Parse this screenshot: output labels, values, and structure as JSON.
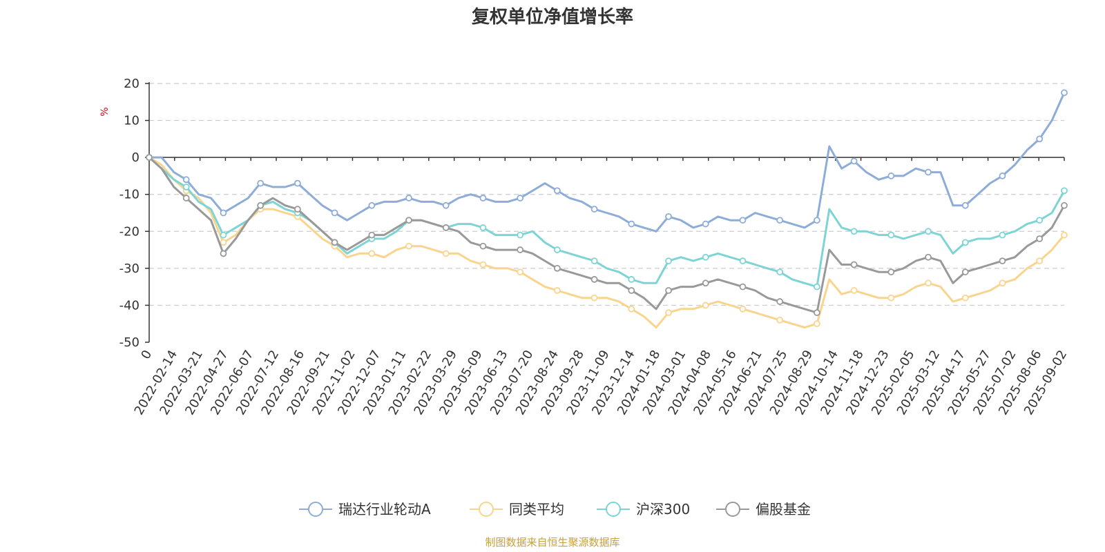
{
  "chart_data": {
    "type": "line",
    "title": "复权单位净值增长率",
    "ylabel": "%",
    "ylim": [
      -50,
      20
    ],
    "yticks": [
      20,
      10,
      0,
      -10,
      -20,
      -30,
      -40,
      -50
    ],
    "grid": true,
    "legend_position": "bottom",
    "xtick_labels": [
      "0",
      "2022-02-14",
      "2022-03-21",
      "2022-04-27",
      "2022-06-07",
      "2022-07-12",
      "2022-08-16",
      "2022-09-21",
      "2022-11-02",
      "2022-12-07",
      "2023-01-11",
      "2023-02-22",
      "2023-03-29",
      "2023-05-09",
      "2023-06-13",
      "2023-07-20",
      "2023-08-24",
      "2023-09-28",
      "2023-11-09",
      "2023-12-14",
      "2024-01-18",
      "2024-03-01",
      "2024-04-08",
      "2024-05-16",
      "2024-06-21",
      "2024-07-25",
      "2024-08-29",
      "2024-10-14",
      "2024-11-18",
      "2024-12-23",
      "2025-02-05",
      "2025-03-12",
      "2025-04-17",
      "2025-05-27",
      "2025-07-02",
      "2025-08-06",
      "2025-09-02"
    ],
    "x": [
      "0",
      "2022-01-20",
      "2022-02-14",
      "2022-03-01",
      "2022-03-21",
      "2022-04-08",
      "2022-04-27",
      "2022-05-16",
      "2022-06-07",
      "2022-06-24",
      "2022-07-12",
      "2022-07-28",
      "2022-08-16",
      "2022-09-01",
      "2022-09-21",
      "2022-10-12",
      "2022-11-02",
      "2022-11-18",
      "2022-12-07",
      "2022-12-23",
      "2023-01-11",
      "2023-02-06",
      "2023-02-22",
      "2023-03-10",
      "2023-03-29",
      "2023-04-18",
      "2023-05-09",
      "2023-05-25",
      "2023-06-13",
      "2023-07-03",
      "2023-07-20",
      "2023-08-07",
      "2023-08-24",
      "2023-09-11",
      "2023-09-28",
      "2023-10-23",
      "2023-11-09",
      "2023-11-27",
      "2023-12-14",
      "2024-01-02",
      "2024-01-18",
      "2024-02-06",
      "2024-03-01",
      "2024-03-19",
      "2024-04-08",
      "2024-04-26",
      "2024-05-16",
      "2024-06-03",
      "2024-06-21",
      "2024-07-09",
      "2024-07-25",
      "2024-08-12",
      "2024-08-29",
      "2024-09-24",
      "2024-09-30",
      "2024-10-14",
      "2024-10-31",
      "2024-11-18",
      "2024-12-05",
      "2024-12-23",
      "2025-01-13",
      "2025-02-05",
      "2025-02-21",
      "2025-03-12",
      "2025-03-31",
      "2025-04-07",
      "2025-04-17",
      "2025-05-08",
      "2025-05-27",
      "2025-06-16",
      "2025-07-02",
      "2025-07-18",
      "2025-08-06",
      "2025-08-20",
      "2025-09-02"
    ],
    "series": [
      {
        "name": "瑞达行业轮动A",
        "color": "#8eacd8",
        "values": [
          0,
          0,
          -4,
          -6,
          -10,
          -11,
          -15,
          -13,
          -11,
          -7,
          -8,
          -8,
          -7,
          -10,
          -13,
          -15,
          -17,
          -15,
          -13,
          -12,
          -12,
          -11,
          -12,
          -12,
          -13,
          -11,
          -10,
          -11,
          -12,
          -12,
          -11,
          -9,
          -7,
          -9,
          -11,
          -12,
          -14,
          -15,
          -16,
          -18,
          -19,
          -20,
          -16,
          -17,
          -19,
          -18,
          -16,
          -17,
          -17,
          -15,
          -16,
          -17,
          -18,
          -19,
          -17,
          3,
          -3,
          -1,
          -4,
          -6,
          -5,
          -5,
          -3,
          -4,
          -4,
          -13,
          -13,
          -10,
          -7,
          -5,
          -2,
          2,
          5,
          10,
          17.5
        ]
      },
      {
        "name": "同类平均",
        "color": "#f9d48c",
        "values": [
          0,
          -2,
          -6,
          -9,
          -11,
          -15,
          -23,
          -21,
          -17,
          -14,
          -14,
          -15,
          -16,
          -19,
          -22,
          -24,
          -27,
          -26,
          -26,
          -27,
          -25,
          -24,
          -24,
          -25,
          -26,
          -26,
          -28,
          -29,
          -30,
          -30,
          -31,
          -33,
          -35,
          -36,
          -37,
          -38,
          -38,
          -38,
          -39,
          -41,
          -43,
          -46,
          -42,
          -41,
          -41,
          -40,
          -39,
          -40,
          -41,
          -42,
          -43,
          -44,
          -45,
          -46,
          -45,
          -33,
          -37,
          -36,
          -37,
          -38,
          -38,
          -37,
          -35,
          -34,
          -35,
          -39,
          -38,
          -37,
          -36,
          -34,
          -33,
          -30,
          -28,
          -25,
          -21
        ]
      },
      {
        "name": "沪深300",
        "color": "#7dd4d4",
        "values": [
          0,
          -3,
          -6,
          -8,
          -12,
          -14,
          -21,
          -19,
          -17,
          -13,
          -12,
          -14,
          -15,
          -17,
          -20,
          -23,
          -26,
          -24,
          -22,
          -22,
          -20,
          -17,
          -17,
          -18,
          -19,
          -18,
          -18,
          -19,
          -21,
          -21,
          -21,
          -20,
          -23,
          -25,
          -26,
          -27,
          -28,
          -30,
          -31,
          -33,
          -34,
          -34,
          -28,
          -27,
          -28,
          -27,
          -26,
          -27,
          -28,
          -29,
          -30,
          -31,
          -33,
          -34,
          -35,
          -14,
          -19,
          -20,
          -20,
          -21,
          -21,
          -22,
          -21,
          -20,
          -21,
          -26,
          -23,
          -22,
          -22,
          -21,
          -20,
          -18,
          -17,
          -15,
          -9
        ]
      },
      {
        "name": "偏股基金",
        "color": "#999999",
        "values": [
          0,
          -3,
          -8,
          -11,
          -14,
          -17,
          -26,
          -22,
          -17,
          -13,
          -11,
          -13,
          -14,
          -17,
          -20,
          -23,
          -25,
          -23,
          -21,
          -21,
          -19,
          -17,
          -17,
          -18,
          -19,
          -20,
          -23,
          -24,
          -25,
          -25,
          -25,
          -26,
          -28,
          -30,
          -31,
          -32,
          -33,
          -34,
          -34,
          -36,
          -38,
          -41,
          -36,
          -35,
          -35,
          -34,
          -33,
          -34,
          -35,
          -36,
          -38,
          -39,
          -40,
          -41,
          -42,
          -25,
          -29,
          -29,
          -30,
          -31,
          -31,
          -30,
          -28,
          -27,
          -28,
          -34,
          -31,
          -30,
          -29,
          -28,
          -27,
          -24,
          -22,
          -19,
          -13
        ]
      }
    ]
  },
  "source_text": "制图数据来自恒生聚源数据库"
}
